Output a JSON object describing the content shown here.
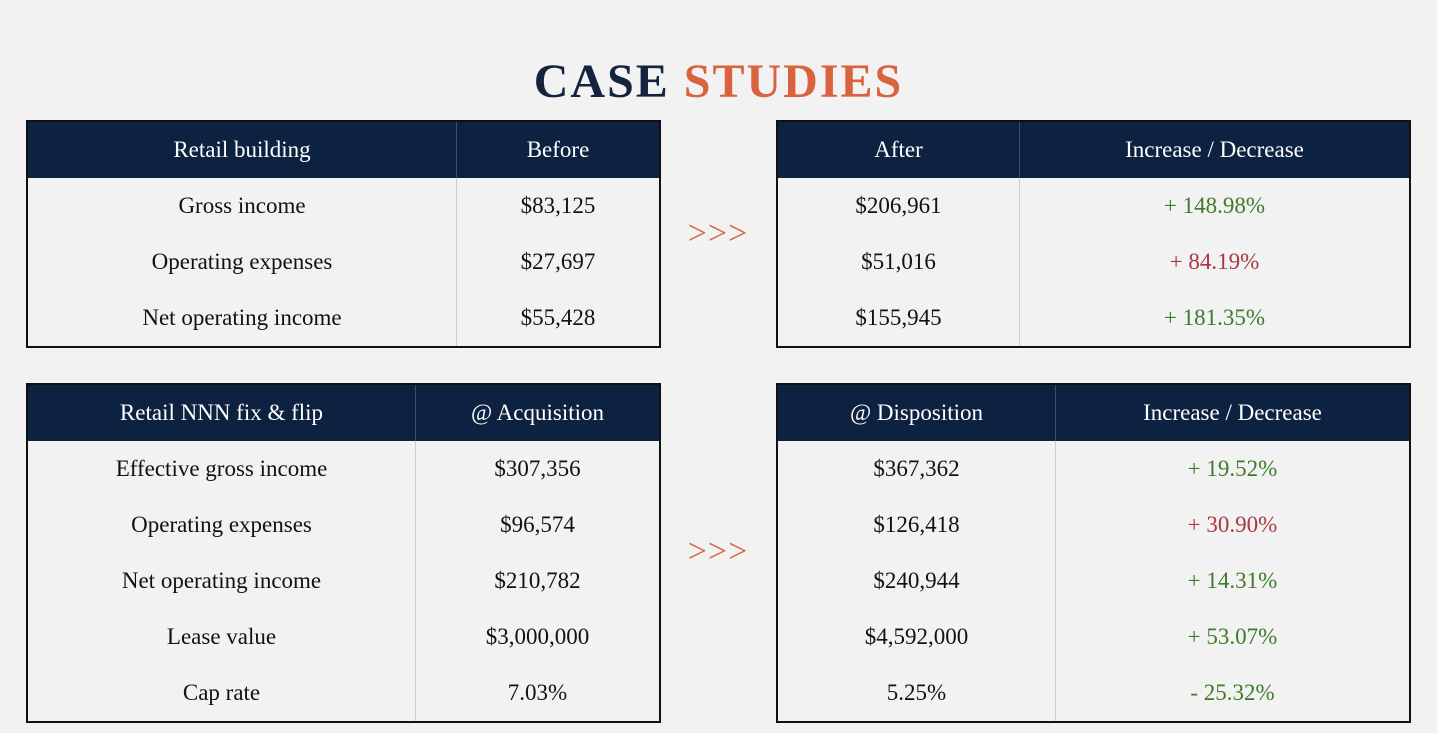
{
  "title": {
    "word1": "CASE",
    "word2": "STUDIES"
  },
  "arrow": ">>>",
  "colors": {
    "navy": "#0c2240",
    "accent": "#d9623f",
    "increase_good": "#3f7a2a",
    "increase_bad": "#a83a3f"
  },
  "case1": {
    "left": {
      "headers": [
        "Retail building",
        "Before"
      ],
      "rows": [
        [
          "Gross income",
          "$83,125"
        ],
        [
          "Operating expenses",
          "$27,697"
        ],
        [
          "Net operating income",
          "$55,428"
        ]
      ]
    },
    "right": {
      "headers": [
        "After",
        "Increase / Decrease"
      ],
      "rows": [
        [
          "$206,961",
          "+ 148.98%"
        ],
        [
          "$51,016",
          "+ 84.19%"
        ],
        [
          "$155,945",
          "+ 181.35%"
        ]
      ]
    }
  },
  "case2": {
    "left": {
      "headers": [
        "Retail NNN fix & flip",
        "@ Acquisition"
      ],
      "rows": [
        [
          "Effective gross income",
          "$307,356"
        ],
        [
          "Operating expenses",
          "$96,574"
        ],
        [
          "Net operating income",
          "$210,782"
        ],
        [
          "Lease value",
          "$3,000,000"
        ],
        [
          "Cap rate",
          "7.03%"
        ]
      ]
    },
    "right": {
      "headers": [
        "@ Disposition",
        "Increase / Decrease"
      ],
      "rows": [
        [
          "$367,362",
          "+ 19.52%"
        ],
        [
          "$126,418",
          "+ 30.90%"
        ],
        [
          "$240,944",
          "+ 14.31%"
        ],
        [
          "$4,592,000",
          "+ 53.07%"
        ],
        [
          "5.25%",
          "- 25.32%"
        ]
      ]
    }
  }
}
